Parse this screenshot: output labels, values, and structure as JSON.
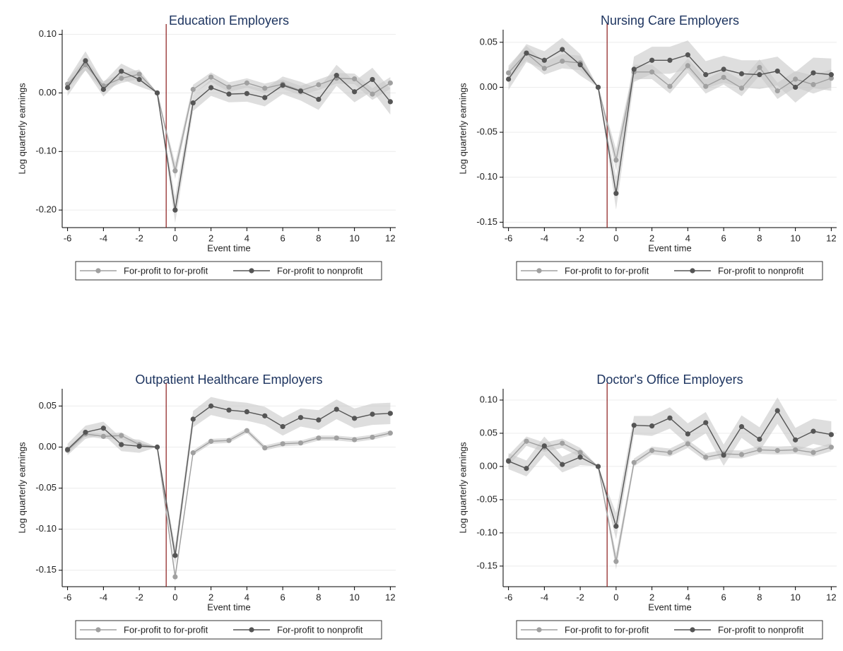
{
  "chart_data": [
    {
      "type": "line",
      "title": "Education Employers",
      "xlabel": "Event time",
      "ylabel": "Log quarterly earnings",
      "x": [
        -6,
        -5,
        -4,
        -3,
        -2,
        -1,
        0,
        1,
        2,
        3,
        4,
        5,
        6,
        7,
        8,
        9,
        10,
        11,
        12
      ],
      "series": [
        {
          "name": "For-profit to for-profit",
          "color": "#a0a0a0",
          "values": [
            0.015,
            0.048,
            0.012,
            0.025,
            0.032,
            0,
            -0.133,
            0.006,
            0.027,
            0.01,
            0.017,
            0.008,
            0.015,
            0.004,
            0.014,
            0.025,
            0.024,
            -0.002,
            0.017
          ],
          "error": [
            0.008,
            0.01,
            0.008,
            0.008,
            0.008,
            0,
            0.014,
            0.008,
            0.008,
            0.008,
            0.008,
            0.008,
            0.008,
            0.008,
            0.009,
            0.009,
            0.009,
            0.01,
            0.01
          ]
        },
        {
          "name": "For-profit to nonprofit",
          "color": "#555555",
          "values": [
            0.009,
            0.055,
            0.006,
            0.037,
            0.023,
            0,
            -0.2,
            -0.017,
            0.009,
            -0.002,
            -0.001,
            -0.008,
            0.013,
            0.003,
            -0.011,
            0.03,
            0.002,
            0.023,
            -0.015
          ],
          "error": [
            0.014,
            0.016,
            0.012,
            0.013,
            0.012,
            0,
            0.022,
            0.014,
            0.014,
            0.014,
            0.014,
            0.015,
            0.015,
            0.016,
            0.018,
            0.018,
            0.018,
            0.02,
            0.022
          ]
        }
      ],
      "xlim": [
        -6.3,
        12.3
      ],
      "xticks": [
        -6,
        -4,
        -2,
        0,
        2,
        4,
        6,
        8,
        10,
        12
      ],
      "ylim": [
        -0.23,
        0.108
      ],
      "yticks": [
        {
          "value": 0.1,
          "label": "0.10"
        },
        {
          "value": 0,
          "label": "0.00"
        },
        {
          "value": -0.1,
          "label": "-0.10"
        },
        {
          "value": -0.2,
          "label": "-0.20"
        }
      ],
      "vline": -0.5,
      "vline_color": "#8b1a1a",
      "grid": true,
      "legend": "bottom"
    },
    {
      "type": "line",
      "title": "Nursing Care Employers",
      "xlabel": "Event time",
      "ylabel": "Log quarterly earnings",
      "x": [
        -6,
        -5,
        -4,
        -3,
        -2,
        -1,
        0,
        1,
        2,
        3,
        4,
        5,
        6,
        7,
        8,
        9,
        10,
        11,
        12
      ],
      "series": [
        {
          "name": "For-profit to for-profit",
          "color": "#a0a0a0",
          "values": [
            0.016,
            0.038,
            0.021,
            0.029,
            0.027,
            0,
            -0.081,
            0.017,
            0.017,
            0.001,
            0.024,
            0.001,
            0.011,
            -0.001,
            0.022,
            -0.004,
            0.009,
            0.003,
            0.01
          ],
          "error": [
            0.008,
            0.008,
            0.007,
            0.008,
            0.008,
            0,
            0.012,
            0.008,
            0.008,
            0.008,
            0.008,
            0.008,
            0.008,
            0.009,
            0.009,
            0.009,
            0.009,
            0.01,
            0.01
          ]
        },
        {
          "name": "For-profit to nonprofit",
          "color": "#555555",
          "values": [
            0.009,
            0.038,
            0.03,
            0.042,
            0.025,
            0,
            -0.118,
            0.02,
            0.03,
            0.03,
            0.036,
            0.014,
            0.02,
            0.015,
            0.014,
            0.018,
            0.0,
            0.016,
            0.014
          ],
          "error": [
            0.012,
            0.01,
            0.01,
            0.013,
            0.012,
            0,
            0.018,
            0.014,
            0.015,
            0.015,
            0.016,
            0.015,
            0.015,
            0.015,
            0.016,
            0.016,
            0.017,
            0.017,
            0.018
          ]
        }
      ],
      "xlim": [
        -6.3,
        12.3
      ],
      "xticks": [
        -6,
        -4,
        -2,
        0,
        2,
        4,
        6,
        8,
        10,
        12
      ],
      "ylim": [
        -0.156,
        0.064
      ],
      "yticks": [
        {
          "value": 0.05,
          "label": "0.05"
        },
        {
          "value": 0,
          "label": "0.00"
        },
        {
          "value": -0.05,
          "label": "-0.05"
        },
        {
          "value": -0.1,
          "label": "-0.10"
        },
        {
          "value": -0.15,
          "label": "-0.15"
        }
      ],
      "vline": -0.5,
      "vline_color": "#8b1a1a",
      "grid": true,
      "legend": "bottom"
    },
    {
      "type": "line",
      "title": "Outpatient Healthcare Employers",
      "xlabel": "Event time",
      "ylabel": "Log quarterly earnings",
      "x": [
        -6,
        -5,
        -4,
        -3,
        -2,
        -1,
        0,
        1,
        2,
        3,
        4,
        5,
        6,
        7,
        8,
        9,
        10,
        11,
        12
      ],
      "series": [
        {
          "name": "For-profit to for-profit",
          "color": "#a0a0a0",
          "values": [
            -0.004,
            0.016,
            0.013,
            0.014,
            0.003,
            0,
            -0.158,
            -0.007,
            0.007,
            0.008,
            0.02,
            -0.001,
            0.004,
            0.005,
            0.011,
            0.011,
            0.009,
            0.012,
            0.017
          ],
          "error": [
            0.004,
            0.003,
            0.003,
            0.004,
            0.003,
            0,
            0.006,
            0.003,
            0.003,
            0.003,
            0.003,
            0.003,
            0.003,
            0.003,
            0.003,
            0.003,
            0.003,
            0.003,
            0.003
          ]
        },
        {
          "name": "For-profit to nonprofit",
          "color": "#555555",
          "values": [
            -0.003,
            0.018,
            0.023,
            0.003,
            0.001,
            0,
            -0.132,
            0.034,
            0.05,
            0.045,
            0.043,
            0.038,
            0.025,
            0.036,
            0.033,
            0.046,
            0.035,
            0.04,
            0.041
          ],
          "error": [
            0.007,
            0.008,
            0.008,
            0.008,
            0.008,
            0,
            0.012,
            0.01,
            0.011,
            0.011,
            0.011,
            0.011,
            0.011,
            0.011,
            0.012,
            0.012,
            0.012,
            0.013,
            0.013
          ]
        }
      ],
      "xlim": [
        -6.3,
        12.3
      ],
      "xticks": [
        -6,
        -4,
        -2,
        0,
        2,
        4,
        6,
        8,
        10,
        12
      ],
      "ylim": [
        -0.17,
        0.071
      ],
      "yticks": [
        {
          "value": 0.05,
          "label": "0.05"
        },
        {
          "value": 0,
          "label": "0.00"
        },
        {
          "value": -0.05,
          "label": "-0.05"
        },
        {
          "value": -0.1,
          "label": "-0.10"
        },
        {
          "value": -0.15,
          "label": "-0.15"
        }
      ],
      "vline": -0.5,
      "vline_color": "#8b1a1a",
      "grid": true,
      "legend": "bottom"
    },
    {
      "type": "line",
      "title": "Doctor's Office Employers",
      "xlabel": "Event time",
      "ylabel": "Log quarterly earnings",
      "x": [
        -6,
        -5,
        -4,
        -3,
        -2,
        -1,
        0,
        1,
        2,
        3,
        4,
        5,
        6,
        7,
        8,
        9,
        10,
        11,
        12
      ],
      "series": [
        {
          "name": "For-profit to for-profit",
          "color": "#a0a0a0",
          "values": [
            0.009,
            0.038,
            0.029,
            0.035,
            0.021,
            0,
            -0.143,
            0.006,
            0.024,
            0.021,
            0.034,
            0.014,
            0.019,
            0.018,
            0.025,
            0.024,
            0.025,
            0.021,
            0.029
          ],
          "error": [
            0.008,
            0.007,
            0.007,
            0.007,
            0.007,
            0,
            0.012,
            0.006,
            0.006,
            0.006,
            0.006,
            0.006,
            0.006,
            0.006,
            0.006,
            0.006,
            0.006,
            0.006,
            0.006
          ]
        },
        {
          "name": "For-profit to nonprofit",
          "color": "#555555",
          "values": [
            0.008,
            -0.003,
            0.031,
            0.003,
            0.014,
            0,
            -0.09,
            0.062,
            0.061,
            0.073,
            0.049,
            0.066,
            0.017,
            0.06,
            0.041,
            0.084,
            0.04,
            0.053,
            0.048
          ],
          "error": [
            0.012,
            0.012,
            0.014,
            0.012,
            0.012,
            0,
            0.02,
            0.014,
            0.015,
            0.016,
            0.016,
            0.016,
            0.016,
            0.017,
            0.018,
            0.02,
            0.018,
            0.019,
            0.02
          ]
        }
      ],
      "xlim": [
        -6.3,
        12.3
      ],
      "xticks": [
        -6,
        -4,
        -2,
        0,
        2,
        4,
        6,
        8,
        10,
        12
      ],
      "ylim": [
        -0.181,
        0.117
      ],
      "yticks": [
        {
          "value": 0.1,
          "label": "0.10"
        },
        {
          "value": 0.05,
          "label": "0.05"
        },
        {
          "value": 0,
          "label": "0.00"
        },
        {
          "value": -0.05,
          "label": "-0.05"
        },
        {
          "value": -0.1,
          "label": "-0.10"
        },
        {
          "value": -0.15,
          "label": "-0.15"
        }
      ],
      "vline": -0.5,
      "vline_color": "#8b1a1a",
      "grid": true,
      "legend": "bottom"
    }
  ]
}
